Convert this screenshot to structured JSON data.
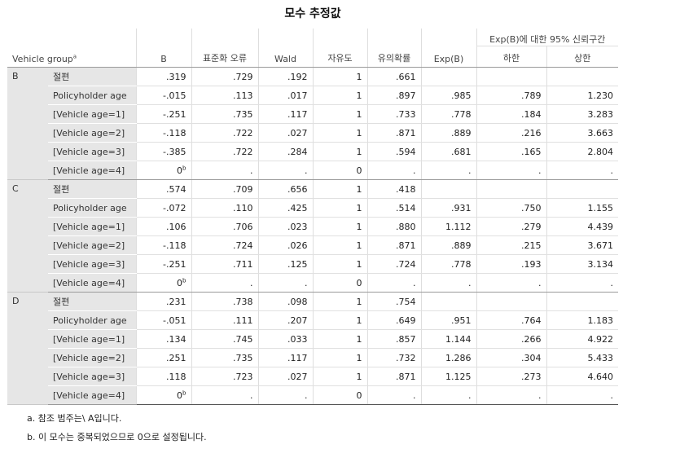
{
  "title": "모수 추정값",
  "header": {
    "row_label": "Vehicle group",
    "row_label_sup": "a",
    "ci_label": "Exp(B)에 대한 95% 신뢰구간",
    "columns": [
      "B",
      "표준화 오류",
      "Wald",
      "자유도",
      "유의확률",
      "Exp(B)",
      "하한",
      "상한"
    ]
  },
  "groups": [
    {
      "name": "B",
      "rows": [
        {
          "param": "절편",
          "b": ".319",
          "se": ".729",
          "wald": ".192",
          "df": "1",
          "sig": ".661",
          "expb": "",
          "lower": "",
          "upper": ""
        },
        {
          "param": "Policyholder age",
          "b": "-.015",
          "se": ".113",
          "wald": ".017",
          "df": "1",
          "sig": ".897",
          "expb": ".985",
          "lower": ".789",
          "upper": "1.230"
        },
        {
          "param": "[Vehicle age=1]",
          "b": "-.251",
          "se": ".735",
          "wald": ".117",
          "df": "1",
          "sig": ".733",
          "expb": ".778",
          "lower": ".184",
          "upper": "3.283"
        },
        {
          "param": "[Vehicle age=2]",
          "b": "-.118",
          "se": ".722",
          "wald": ".027",
          "df": "1",
          "sig": ".871",
          "expb": ".889",
          "lower": ".216",
          "upper": "3.663"
        },
        {
          "param": "[Vehicle age=3]",
          "b": "-.385",
          "se": ".722",
          "wald": ".284",
          "df": "1",
          "sig": ".594",
          "expb": ".681",
          "lower": ".165",
          "upper": "2.804"
        },
        {
          "param": "[Vehicle age=4]",
          "b": "0",
          "b_sup": "b",
          "se": ".",
          "wald": ".",
          "df": "0",
          "sig": ".",
          "expb": ".",
          "lower": ".",
          "upper": "."
        }
      ]
    },
    {
      "name": "C",
      "rows": [
        {
          "param": "절편",
          "b": ".574",
          "se": ".709",
          "wald": ".656",
          "df": "1",
          "sig": ".418",
          "expb": "",
          "lower": "",
          "upper": ""
        },
        {
          "param": "Policyholder age",
          "b": "-.072",
          "se": ".110",
          "wald": ".425",
          "df": "1",
          "sig": ".514",
          "expb": ".931",
          "lower": ".750",
          "upper": "1.155"
        },
        {
          "param": "[Vehicle age=1]",
          "b": ".106",
          "se": ".706",
          "wald": ".023",
          "df": "1",
          "sig": ".880",
          "expb": "1.112",
          "lower": ".279",
          "upper": "4.439"
        },
        {
          "param": "[Vehicle age=2]",
          "b": "-.118",
          "se": ".724",
          "wald": ".026",
          "df": "1",
          "sig": ".871",
          "expb": ".889",
          "lower": ".215",
          "upper": "3.671"
        },
        {
          "param": "[Vehicle age=3]",
          "b": "-.251",
          "se": ".711",
          "wald": ".125",
          "df": "1",
          "sig": ".724",
          "expb": ".778",
          "lower": ".193",
          "upper": "3.134"
        },
        {
          "param": "[Vehicle age=4]",
          "b": "0",
          "b_sup": "b",
          "se": ".",
          "wald": ".",
          "df": "0",
          "sig": ".",
          "expb": ".",
          "lower": ".",
          "upper": "."
        }
      ]
    },
    {
      "name": "D",
      "rows": [
        {
          "param": "절편",
          "b": ".231",
          "se": ".738",
          "wald": ".098",
          "df": "1",
          "sig": ".754",
          "expb": "",
          "lower": "",
          "upper": ""
        },
        {
          "param": "Policyholder age",
          "b": "-.051",
          "se": ".111",
          "wald": ".207",
          "df": "1",
          "sig": ".649",
          "expb": ".951",
          "lower": ".764",
          "upper": "1.183"
        },
        {
          "param": "[Vehicle age=1]",
          "b": ".134",
          "se": ".745",
          "wald": ".033",
          "df": "1",
          "sig": ".857",
          "expb": "1.144",
          "lower": ".266",
          "upper": "4.922"
        },
        {
          "param": "[Vehicle age=2]",
          "b": ".251",
          "se": ".735",
          "wald": ".117",
          "df": "1",
          "sig": ".732",
          "expb": "1.286",
          "lower": ".304",
          "upper": "5.433"
        },
        {
          "param": "[Vehicle age=3]",
          "b": ".118",
          "se": ".723",
          "wald": ".027",
          "df": "1",
          "sig": ".871",
          "expb": "1.125",
          "lower": ".273",
          "upper": "4.640"
        },
        {
          "param": "[Vehicle age=4]",
          "b": "0",
          "b_sup": "b",
          "se": ".",
          "wald": ".",
          "df": "0",
          "sig": ".",
          "expb": ".",
          "lower": ".",
          "upper": "."
        }
      ]
    }
  ],
  "footnotes": [
    "a. 참조 범주는\\ A입니다.",
    "b. 이 모수는 중복되었으므로 0으로 설정됩니다."
  ]
}
